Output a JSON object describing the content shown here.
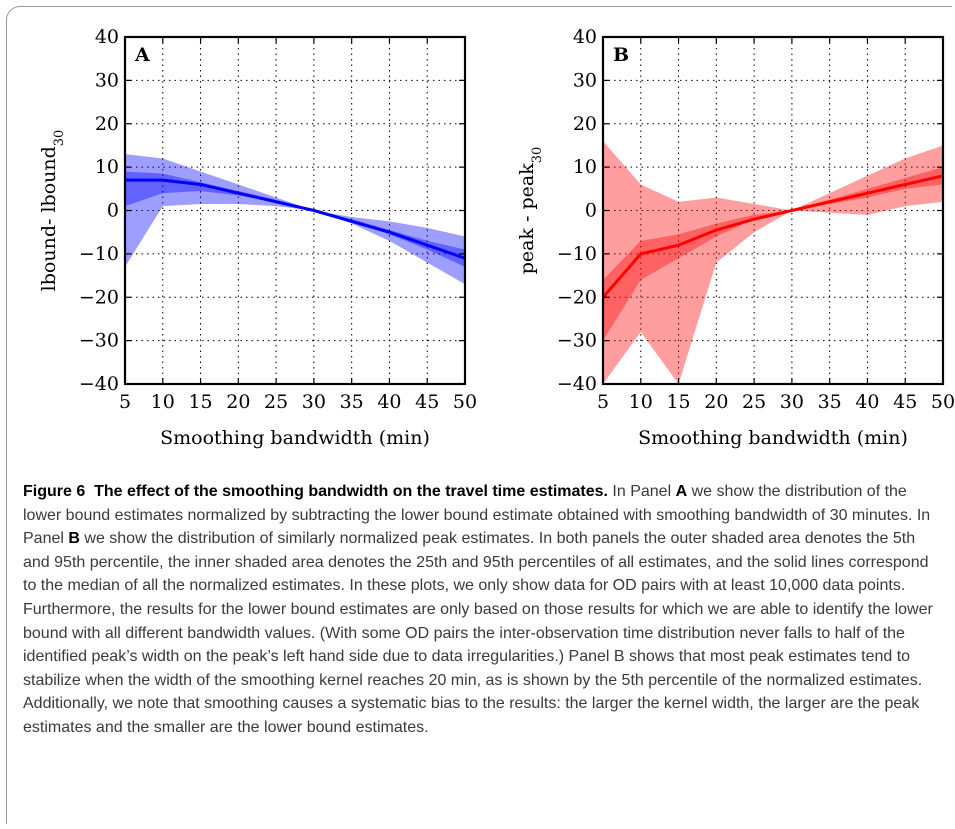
{
  "figure": {
    "number": "Figure 6",
    "title": "The effect of the smoothing bandwidth on the travel time estimates.",
    "caption": {
      "t1": " In Panel ",
      "panel_a": "A",
      "t2": " we show the distribution of the lower bound estimates normalized by subtracting the lower bound estimate obtained with smoothing bandwidth of 30 minutes. In Panel ",
      "panel_b": "B",
      "t3": " we show the distribution of similarly normalized peak estimates. In both panels the outer shaded area denotes the 5th and 95th percentile, the inner shaded area denotes the 25th and 95th percentiles of all estimates, and the solid lines correspond to the median of all the normalized estimates. In these plots, we only show data for OD pairs with at least 10,000 data points. Furthermore, the results for the lower bound estimates are only based on those results for which we are able to identify the lower bound with all different bandwidth values. (With some OD pairs the inter-observation time distribution never falls to half of the identified peak’s width on the peak’s left hand side due to data irregularities.) Panel B shows that most peak estimates tend to stabilize when the width of the smoothing kernel reaches 20 min, as is shown by the 5th percentile of the normalized estimates. Additionally, we note that smoothing causes a systematic bias to the results: the larger the kernel width, the larger are the peak estimates and the smaller are the lower bound estimates."
    }
  },
  "chart_data": [
    {
      "type": "area",
      "panel": "A",
      "xlabel": "Smoothing bandwidth (min)",
      "ylabel": "lbound- lbound",
      "ylabel_sub": "30",
      "xlim": [
        5,
        50
      ],
      "ylim": [
        -40,
        40
      ],
      "xticks": [
        5,
        10,
        15,
        20,
        25,
        30,
        35,
        40,
        45,
        50
      ],
      "yticks": [
        -40,
        -30,
        -20,
        -10,
        0,
        10,
        20,
        30,
        40
      ],
      "ytick_labels": [
        "−40",
        "−30",
        "−20",
        "−10",
        "0",
        "10",
        "20",
        "30",
        "40"
      ],
      "grid": true,
      "color": "#0000ff",
      "x": [
        5,
        10,
        15,
        20,
        25,
        30,
        35,
        40,
        45,
        50
      ],
      "series": [
        {
          "role": "p5",
          "values": [
            -13,
            1,
            1.5,
            1.5,
            1,
            0,
            -3,
            -7,
            -12,
            -17
          ]
        },
        {
          "role": "p25",
          "values": [
            1,
            4,
            4.5,
            3.5,
            2,
            0,
            -2.5,
            -5.5,
            -9,
            -13
          ]
        },
        {
          "role": "median",
          "values": [
            7,
            7,
            6,
            4,
            2,
            0,
            -2.5,
            -5,
            -8,
            -11
          ]
        },
        {
          "role": "p75",
          "values": [
            9,
            8.5,
            6.5,
            4.5,
            2.5,
            0,
            -2,
            -4.5,
            -7,
            -9
          ]
        },
        {
          "role": "p95",
          "values": [
            13,
            12,
            9,
            6,
            3,
            0,
            -1.5,
            -2.5,
            -4,
            -6
          ]
        }
      ]
    },
    {
      "type": "area",
      "panel": "B",
      "xlabel": "Smoothing bandwidth (min)",
      "ylabel": "peak - peak",
      "ylabel_sub": "30",
      "xlim": [
        5,
        50
      ],
      "ylim": [
        -40,
        40
      ],
      "xticks": [
        5,
        10,
        15,
        20,
        25,
        30,
        35,
        40,
        45,
        50
      ],
      "yticks": [
        -40,
        -30,
        -20,
        -10,
        0,
        10,
        20,
        30,
        40
      ],
      "ytick_labels": [
        "−40",
        "−30",
        "−20",
        "−10",
        "0",
        "10",
        "20",
        "30",
        "40"
      ],
      "grid": true,
      "color": "#ff0000",
      "x": [
        5,
        10,
        15,
        20,
        25,
        30,
        35,
        40,
        45,
        50
      ],
      "series": [
        {
          "role": "p5",
          "values": [
            -40,
            -28,
            -40,
            -12,
            -5,
            0,
            -0.5,
            -1,
            1,
            2
          ]
        },
        {
          "role": "p25",
          "values": [
            -30,
            -16,
            -11,
            -6,
            -2,
            0,
            1.5,
            3,
            5,
            6
          ]
        },
        {
          "role": "median",
          "values": [
            -20,
            -10,
            -8,
            -4.5,
            -2,
            0,
            2,
            4,
            6,
            8
          ]
        },
        {
          "role": "p75",
          "values": [
            -16,
            -7,
            -5.5,
            -3,
            -1,
            0,
            2.5,
            5,
            7.5,
            10
          ]
        },
        {
          "role": "p95",
          "values": [
            16,
            6,
            2,
            3,
            1.5,
            0,
            4,
            8,
            12,
            15
          ]
        }
      ]
    }
  ]
}
